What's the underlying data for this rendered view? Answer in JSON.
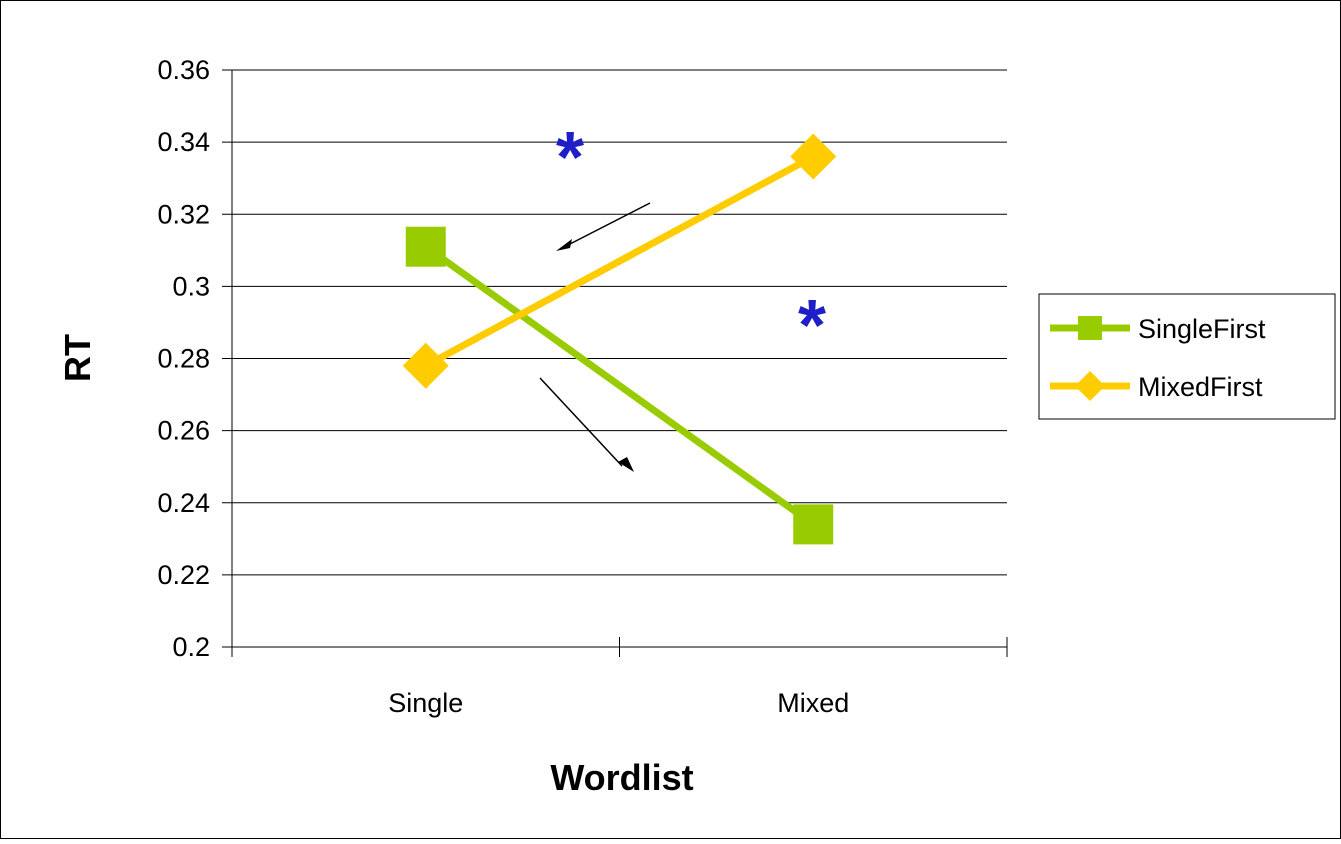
{
  "chart_data": {
    "type": "line",
    "title": "",
    "xlabel": "Wordlist",
    "ylabel": "RT",
    "categories": [
      "Single",
      "Mixed"
    ],
    "ylim": [
      0.2,
      0.36
    ],
    "yticks": [
      "0.2",
      "0.22",
      "0.24",
      "0.26",
      "0.28",
      "0.3",
      "0.32",
      "0.34",
      "0.36"
    ],
    "grid": "horizontal",
    "legend_position": "right",
    "series": [
      {
        "name": "SingleFirst",
        "values": [
          0.311,
          0.234
        ],
        "color": "#99cc00",
        "marker": "square"
      },
      {
        "name": "MixedFirst",
        "values": [
          0.278,
          0.336
        ],
        "color": "#ffcc00",
        "marker": "diamond"
      }
    ],
    "annotations": [
      "*",
      "*"
    ]
  }
}
